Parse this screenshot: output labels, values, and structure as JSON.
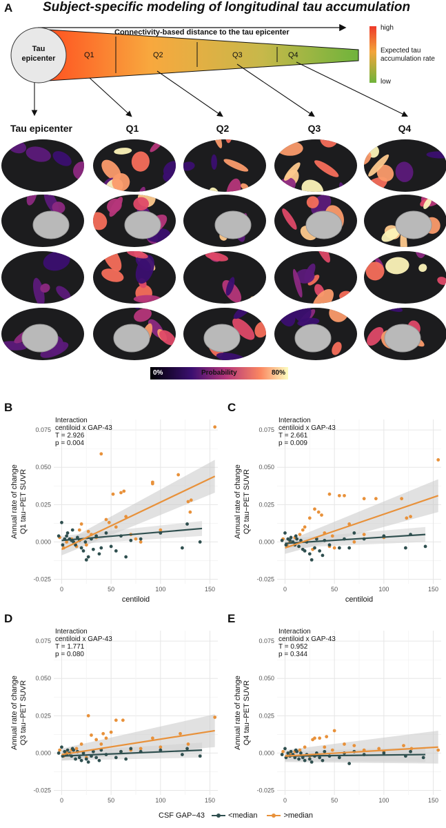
{
  "panel_a": {
    "letter": "A",
    "title": "Subject-specific modeling of longitudinal tau accumulation",
    "arrow_label": "Connectivity-based distance to the tau epicenter",
    "epicenter_line1": "Tau",
    "epicenter_line2": "epicenter",
    "quartiles": [
      "Q1",
      "Q2",
      "Q3",
      "Q4"
    ],
    "legend_high": "high",
    "legend_mid_line1": "Expected tau",
    "legend_mid_line2": "accumulation rate",
    "legend_low": "low",
    "column_labels": [
      "Tau epicenter",
      "Q1",
      "Q2",
      "Q3",
      "Q4"
    ],
    "prob_bar": {
      "min": "0%",
      "label": "Probability",
      "max": "80%"
    },
    "colors": {
      "high": "#ee3a2a",
      "mid": "#f3a43a",
      "low": "#6fb33b",
      "brain_dark": "#1c1c1e",
      "brain_bright": "#fdf3b8"
    }
  },
  "shared": {
    "interaction_line1": "Interaction",
    "interaction_line2": "centiloid x GAP-43",
    "xlabel": "centiloid",
    "x_ticks": [
      "0",
      "50",
      "100",
      "150"
    ],
    "y_ticks": [
      "-0.025",
      "0.000",
      "0.025",
      "0.050",
      "0.075"
    ],
    "legend_title": "CSF GAP−43",
    "legend_low": "<median",
    "legend_high": ">median",
    "color_low": "#2f4f4f",
    "color_high": "#e8913a"
  },
  "chart_data": [
    {
      "letter": "B",
      "type": "scatter",
      "ylabel_line1": "Annual rate of change",
      "ylabel_line2": "Q1 tau−PET SUVR",
      "t_text": "T = 2.926",
      "p_text": "p = 0.004",
      "xlim": [
        -8,
        158
      ],
      "ylim": [
        -0.028,
        0.082
      ],
      "fit_low": [
        [
          0,
          0.001
        ],
        [
          142,
          0.009
        ]
      ],
      "fit_high": [
        [
          0,
          -0.005
        ],
        [
          155,
          0.044
        ]
      ],
      "points_high": [
        [
          40,
          0.059
        ],
        [
          155,
          0.077
        ],
        [
          52,
          0.032
        ],
        [
          60,
          0.033
        ],
        [
          63,
          0.034
        ],
        [
          92,
          0.039
        ],
        [
          92,
          0.04
        ],
        [
          118,
          0.045
        ],
        [
          128,
          0.027
        ],
        [
          131,
          0.028
        ],
        [
          130,
          0.02
        ],
        [
          20,
          0.012
        ],
        [
          18,
          0.008
        ],
        [
          27,
          0.007
        ],
        [
          30,
          0.005
        ],
        [
          10,
          0.002
        ],
        [
          5,
          0.0
        ],
        [
          15,
          -0.003
        ],
        [
          45,
          0.015
        ],
        [
          48,
          0.013
        ],
        [
          55,
          0.01
        ],
        [
          70,
          0.005
        ],
        [
          75,
          0.002
        ],
        [
          80,
          0.0
        ],
        [
          100,
          0.008
        ],
        [
          35,
          0.003
        ],
        [
          25,
          -0.002
        ],
        [
          2,
          -0.004
        ],
        [
          -2,
          0.003
        ],
        [
          65,
          0.017
        ]
      ],
      "points_low": [
        [
          0,
          0.013
        ],
        [
          3,
          0.002
        ],
        [
          5,
          0.004
        ],
        [
          8,
          0.002
        ],
        [
          10,
          0.001
        ],
        [
          12,
          0.0
        ],
        [
          14,
          -0.002
        ],
        [
          16,
          0.003
        ],
        [
          18,
          0.001
        ],
        [
          20,
          -0.004
        ],
        [
          22,
          -0.006
        ],
        [
          24,
          0.0
        ],
        [
          25,
          -0.012
        ],
        [
          27,
          -0.01
        ],
        [
          30,
          0.002
        ],
        [
          32,
          -0.005
        ],
        [
          35,
          0.004
        ],
        [
          38,
          -0.008
        ],
        [
          40,
          -0.004
        ],
        [
          45,
          0.006
        ],
        [
          50,
          -0.003
        ],
        [
          55,
          -0.006
        ],
        [
          60,
          0.004
        ],
        [
          65,
          -0.01
        ],
        [
          70,
          0.001
        ],
        [
          80,
          0.002
        ],
        [
          100,
          0.006
        ],
        [
          122,
          -0.004
        ],
        [
          127,
          0.012
        ],
        [
          140,
          0.0
        ],
        [
          -3,
          0.004
        ],
        [
          1,
          -0.002
        ],
        [
          6,
          0.006
        ],
        [
          11,
          0.008
        ]
      ]
    },
    {
      "letter": "C",
      "type": "scatter",
      "ylabel_line1": "Annual rate of change",
      "ylabel_line2": "Q2 tau−PET SUVR",
      "t_text": "T = 2.661",
      "p_text": "p = 0.009",
      "xlim": [
        -8,
        158
      ],
      "ylim": [
        -0.028,
        0.082
      ],
      "fit_low": [
        [
          0,
          -0.001
        ],
        [
          142,
          0.005
        ]
      ],
      "fit_high": [
        [
          0,
          -0.004
        ],
        [
          155,
          0.031
        ]
      ],
      "points_high": [
        [
          55,
          0.031
        ],
        [
          60,
          0.031
        ],
        [
          45,
          0.032
        ],
        [
          80,
          0.029
        ],
        [
          92,
          0.029
        ],
        [
          118,
          0.029
        ],
        [
          123,
          0.016
        ],
        [
          127,
          0.017
        ],
        [
          155,
          0.055
        ],
        [
          30,
          0.022
        ],
        [
          34,
          0.02
        ],
        [
          37,
          0.018
        ],
        [
          25,
          0.016
        ],
        [
          20,
          0.01
        ],
        [
          15,
          0.005
        ],
        [
          10,
          0.003
        ],
        [
          5,
          0.0
        ],
        [
          40,
          0.006
        ],
        [
          48,
          0.004
        ],
        [
          70,
          0.0
        ],
        [
          80,
          0.005
        ],
        [
          100,
          0.003
        ],
        [
          2,
          -0.002
        ],
        [
          -2,
          0.002
        ],
        [
          18,
          0.008
        ],
        [
          28,
          -0.005
        ],
        [
          45,
          -0.003
        ],
        [
          65,
          0.012
        ],
        [
          50,
          -0.004
        ]
      ],
      "points_low": [
        [
          0,
          0.006
        ],
        [
          3,
          0.002
        ],
        [
          5,
          0.001
        ],
        [
          8,
          0.0
        ],
        [
          10,
          -0.002
        ],
        [
          12,
          0.002
        ],
        [
          14,
          -0.003
        ],
        [
          16,
          0.001
        ],
        [
          18,
          -0.005
        ],
        [
          20,
          -0.006
        ],
        [
          22,
          0.0
        ],
        [
          25,
          -0.008
        ],
        [
          27,
          -0.012
        ],
        [
          30,
          -0.004
        ],
        [
          32,
          0.002
        ],
        [
          35,
          -0.006
        ],
        [
          38,
          -0.009
        ],
        [
          40,
          0.001
        ],
        [
          45,
          -0.002
        ],
        [
          55,
          -0.004
        ],
        [
          60,
          0.002
        ],
        [
          65,
          -0.004
        ],
        [
          70,
          0.006
        ],
        [
          80,
          0.002
        ],
        [
          100,
          0.004
        ],
        [
          122,
          -0.004
        ],
        [
          127,
          0.005
        ],
        [
          142,
          -0.003
        ],
        [
          -3,
          0.001
        ],
        [
          1,
          -0.002
        ],
        [
          6,
          0.003
        ],
        [
          11,
          0.004
        ]
      ]
    },
    {
      "letter": "D",
      "type": "scatter",
      "ylabel_line1": "Annual rate of change",
      "ylabel_line2": "Q3 tau−PET SUVR",
      "t_text": "T = 1.771",
      "p_text": "p = 0.080",
      "xlim": [
        -8,
        158
      ],
      "ylim": [
        -0.028,
        0.082
      ],
      "fit_low": [
        [
          0,
          -0.002
        ],
        [
          142,
          0.002
        ]
      ],
      "fit_high": [
        [
          0,
          -0.001
        ],
        [
          155,
          0.015
        ]
      ],
      "points_high": [
        [
          27,
          0.025
        ],
        [
          62,
          0.022
        ],
        [
          55,
          0.022
        ],
        [
          50,
          0.014
        ],
        [
          42,
          0.013
        ],
        [
          45,
          0.01
        ],
        [
          30,
          0.012
        ],
        [
          35,
          0.009
        ],
        [
          120,
          0.013
        ],
        [
          92,
          0.01
        ],
        [
          128,
          0.006
        ],
        [
          155,
          0.024
        ],
        [
          20,
          0.006
        ],
        [
          15,
          0.003
        ],
        [
          10,
          0.002
        ],
        [
          5,
          0.0
        ],
        [
          40,
          0.006
        ],
        [
          70,
          0.002
        ],
        [
          80,
          0.003
        ],
        [
          100,
          0.004
        ],
        [
          2,
          -0.002
        ],
        [
          -2,
          0.002
        ],
        [
          25,
          -0.003
        ],
        [
          60,
          0.001
        ]
      ],
      "points_low": [
        [
          0,
          0.004
        ],
        [
          3,
          0.001
        ],
        [
          5,
          -0.001
        ],
        [
          8,
          0.0
        ],
        [
          10,
          -0.002
        ],
        [
          12,
          0.002
        ],
        [
          14,
          -0.004
        ],
        [
          16,
          0.001
        ],
        [
          18,
          -0.003
        ],
        [
          20,
          -0.005
        ],
        [
          22,
          0.0
        ],
        [
          25,
          -0.004
        ],
        [
          27,
          -0.006
        ],
        [
          30,
          -0.002
        ],
        [
          32,
          0.001
        ],
        [
          35,
          -0.003
        ],
        [
          38,
          -0.005
        ],
        [
          40,
          0.002
        ],
        [
          45,
          -0.001
        ],
        [
          55,
          -0.003
        ],
        [
          60,
          0.001
        ],
        [
          65,
          -0.004
        ],
        [
          70,
          0.003
        ],
        [
          80,
          0.001
        ],
        [
          100,
          0.002
        ],
        [
          122,
          -0.001
        ],
        [
          127,
          0.003
        ],
        [
          140,
          -0.002
        ],
        [
          -3,
          0.0
        ],
        [
          1,
          -0.002
        ],
        [
          6,
          0.002
        ],
        [
          11,
          0.003
        ]
      ]
    },
    {
      "letter": "E",
      "type": "scatter",
      "ylabel_line1": "Annual rate of change",
      "ylabel_line2": "Q4 tau−PET SUVR",
      "t_text": "T = 0.952",
      "p_text": "p = 0.344",
      "xlim": [
        -8,
        158
      ],
      "ylim": [
        -0.028,
        0.082
      ],
      "fit_low": [
        [
          0,
          -0.002
        ],
        [
          142,
          -0.001
        ]
      ],
      "fit_high": [
        [
          0,
          -0.002
        ],
        [
          155,
          0.004
        ]
      ],
      "points_high": [
        [
          50,
          0.015
        ],
        [
          42,
          0.011
        ],
        [
          35,
          0.01
        ],
        [
          30,
          0.01
        ],
        [
          28,
          0.009
        ],
        [
          60,
          0.006
        ],
        [
          70,
          0.005
        ],
        [
          95,
          0.003
        ],
        [
          120,
          0.005
        ],
        [
          128,
          0.003
        ],
        [
          155,
          0.002
        ],
        [
          20,
          0.004
        ],
        [
          15,
          0.002
        ],
        [
          10,
          0.001
        ],
        [
          5,
          0.0
        ],
        [
          40,
          0.004
        ],
        [
          80,
          0.002
        ],
        [
          100,
          0.001
        ],
        [
          2,
          -0.002
        ],
        [
          -2,
          0.001
        ],
        [
          25,
          -0.002
        ],
        [
          48,
          0.002
        ]
      ],
      "points_low": [
        [
          0,
          0.003
        ],
        [
          3,
          0.0
        ],
        [
          5,
          -0.002
        ],
        [
          8,
          -0.001
        ],
        [
          10,
          -0.003
        ],
        [
          12,
          0.001
        ],
        [
          14,
          -0.004
        ],
        [
          16,
          0.0
        ],
        [
          18,
          -0.003
        ],
        [
          20,
          -0.005
        ],
        [
          22,
          -0.001
        ],
        [
          25,
          -0.004
        ],
        [
          27,
          -0.006
        ],
        [
          30,
          -0.002
        ],
        [
          32,
          0.0
        ],
        [
          35,
          -0.003
        ],
        [
          38,
          -0.005
        ],
        [
          40,
          0.001
        ],
        [
          45,
          -0.002
        ],
        [
          55,
          -0.003
        ],
        [
          60,
          0.0
        ],
        [
          65,
          -0.007
        ],
        [
          70,
          0.001
        ],
        [
          80,
          -0.001
        ],
        [
          100,
          0.0
        ],
        [
          122,
          -0.002
        ],
        [
          127,
          0.001
        ],
        [
          140,
          -0.003
        ],
        [
          -3,
          -0.001
        ],
        [
          1,
          -0.003
        ],
        [
          6,
          0.001
        ],
        [
          11,
          0.002
        ]
      ]
    }
  ]
}
